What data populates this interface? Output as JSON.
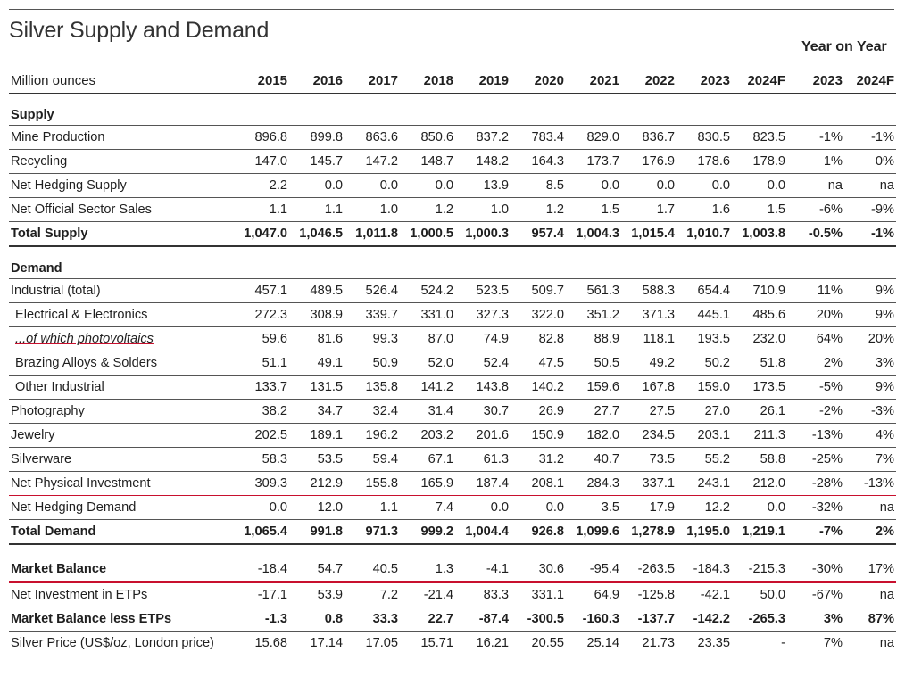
{
  "title": "Silver Supply and Demand",
  "yoy_label": "Year on Year",
  "units_label": "Million ounces",
  "columns": [
    "2015",
    "2016",
    "2017",
    "2018",
    "2019",
    "2020",
    "2021",
    "2022",
    "2023",
    "2024F",
    "2023",
    "2024F"
  ],
  "sections": {
    "supply": "Supply",
    "demand": "Demand"
  },
  "rows": {
    "mine_production": {
      "label": "Mine Production",
      "values": [
        "896.8",
        "899.8",
        "863.6",
        "850.6",
        "837.2",
        "783.4",
        "829.0",
        "836.7",
        "830.5",
        "823.5",
        "-1%",
        "-1%"
      ]
    },
    "recycling": {
      "label": "Recycling",
      "values": [
        "147.0",
        "145.7",
        "147.2",
        "148.7",
        "148.2",
        "164.3",
        "173.7",
        "176.9",
        "178.6",
        "178.9",
        "1%",
        "0%"
      ]
    },
    "net_hedging_supply": {
      "label": "Net Hedging Supply",
      "values": [
        "2.2",
        "0.0",
        "0.0",
        "0.0",
        "13.9",
        "8.5",
        "0.0",
        "0.0",
        "0.0",
        "0.0",
        "na",
        "na"
      ]
    },
    "net_official_sector_sales": {
      "label": "Net Official Sector Sales",
      "values": [
        "1.1",
        "1.1",
        "1.0",
        "1.2",
        "1.0",
        "1.2",
        "1.5",
        "1.7",
        "1.6",
        "1.5",
        "-6%",
        "-9%"
      ]
    },
    "total_supply": {
      "label": "Total Supply",
      "values": [
        "1,047.0",
        "1,046.5",
        "1,011.8",
        "1,000.5",
        "1,000.3",
        "957.4",
        "1,004.3",
        "1,015.4",
        "1,010.7",
        "1,003.8",
        "-0.5%",
        "-1%"
      ]
    },
    "industrial_total": {
      "label": "Industrial (total)",
      "values": [
        "457.1",
        "489.5",
        "526.4",
        "524.2",
        "523.5",
        "509.7",
        "561.3",
        "588.3",
        "654.4",
        "710.9",
        "11%",
        "9%"
      ]
    },
    "electrical": {
      "label": "Electrical & Electronics",
      "values": [
        "272.3",
        "308.9",
        "339.7",
        "331.0",
        "327.3",
        "322.0",
        "351.2",
        "371.3",
        "445.1",
        "485.6",
        "20%",
        "9%"
      ]
    },
    "photovoltaics": {
      "label": "...of which photovoltaics",
      "values": [
        "59.6",
        "81.6",
        "99.3",
        "87.0",
        "74.9",
        "82.8",
        "88.9",
        "118.1",
        "193.5",
        "232.0",
        "64%",
        "20%"
      ]
    },
    "brazing": {
      "label": "Brazing Alloys & Solders",
      "values": [
        "51.1",
        "49.1",
        "50.9",
        "52.0",
        "52.4",
        "47.5",
        "50.5",
        "49.2",
        "50.2",
        "51.8",
        "2%",
        "3%"
      ]
    },
    "other_industrial": {
      "label": "Other Industrial",
      "values": [
        "133.7",
        "131.5",
        "135.8",
        "141.2",
        "143.8",
        "140.2",
        "159.6",
        "167.8",
        "159.0",
        "173.5",
        "-5%",
        "9%"
      ]
    },
    "photography": {
      "label": "Photography",
      "values": [
        "38.2",
        "34.7",
        "32.4",
        "31.4",
        "30.7",
        "26.9",
        "27.7",
        "27.5",
        "27.0",
        "26.1",
        "-2%",
        "-3%"
      ]
    },
    "jewelry": {
      "label": "Jewelry",
      "values": [
        "202.5",
        "189.1",
        "196.2",
        "203.2",
        "201.6",
        "150.9",
        "182.0",
        "234.5",
        "203.1",
        "211.3",
        "-13%",
        "4%"
      ]
    },
    "silverware": {
      "label": "Silverware",
      "values": [
        "58.3",
        "53.5",
        "59.4",
        "67.1",
        "61.3",
        "31.2",
        "40.7",
        "73.5",
        "55.2",
        "58.8",
        "-25%",
        "7%"
      ]
    },
    "net_physical_investment": {
      "label": "Net Physical Investment",
      "values": [
        "309.3",
        "212.9",
        "155.8",
        "165.9",
        "187.4",
        "208.1",
        "284.3",
        "337.1",
        "243.1",
        "212.0",
        "-28%",
        "-13%"
      ]
    },
    "net_hedging_demand": {
      "label": "Net Hedging Demand",
      "values": [
        "0.0",
        "12.0",
        "1.1",
        "7.4",
        "0.0",
        "0.0",
        "3.5",
        "17.9",
        "12.2",
        "0.0",
        "-32%",
        "na"
      ]
    },
    "total_demand": {
      "label": "Total Demand",
      "values": [
        "1,065.4",
        "991.8",
        "971.3",
        "999.2",
        "1,004.4",
        "926.8",
        "1,099.6",
        "1,278.9",
        "1,195.0",
        "1,219.1",
        "-7%",
        "2%"
      ]
    },
    "market_balance": {
      "label": "Market Balance",
      "values": [
        "-18.4",
        "54.7",
        "40.5",
        "1.3",
        "-4.1",
        "30.6",
        "-95.4",
        "-263.5",
        "-184.3",
        "-215.3",
        "-30%",
        "17%"
      ]
    },
    "net_investment_etps": {
      "label": "Net Investment in ETPs",
      "values": [
        "-17.1",
        "53.9",
        "7.2",
        "-21.4",
        "83.3",
        "331.1",
        "64.9",
        "-125.8",
        "-42.1",
        "50.0",
        "-67%",
        "na"
      ]
    },
    "market_balance_less_etps": {
      "label": "Market Balance less ETPs",
      "values": [
        "-1.3",
        "0.8",
        "33.3",
        "22.7",
        "-87.4",
        "-300.5",
        "-160.3",
        "-137.7",
        "-142.2",
        "-265.3",
        "3%",
        "87%"
      ]
    },
    "silver_price": {
      "label": "Silver Price (US$/oz, London price)",
      "values": [
        "15.68",
        "17.14",
        "17.05",
        "15.71",
        "16.21",
        "20.55",
        "25.14",
        "21.73",
        "23.35",
        "-",
        "7%",
        "na"
      ]
    }
  },
  "accent_color": "#c8102e"
}
